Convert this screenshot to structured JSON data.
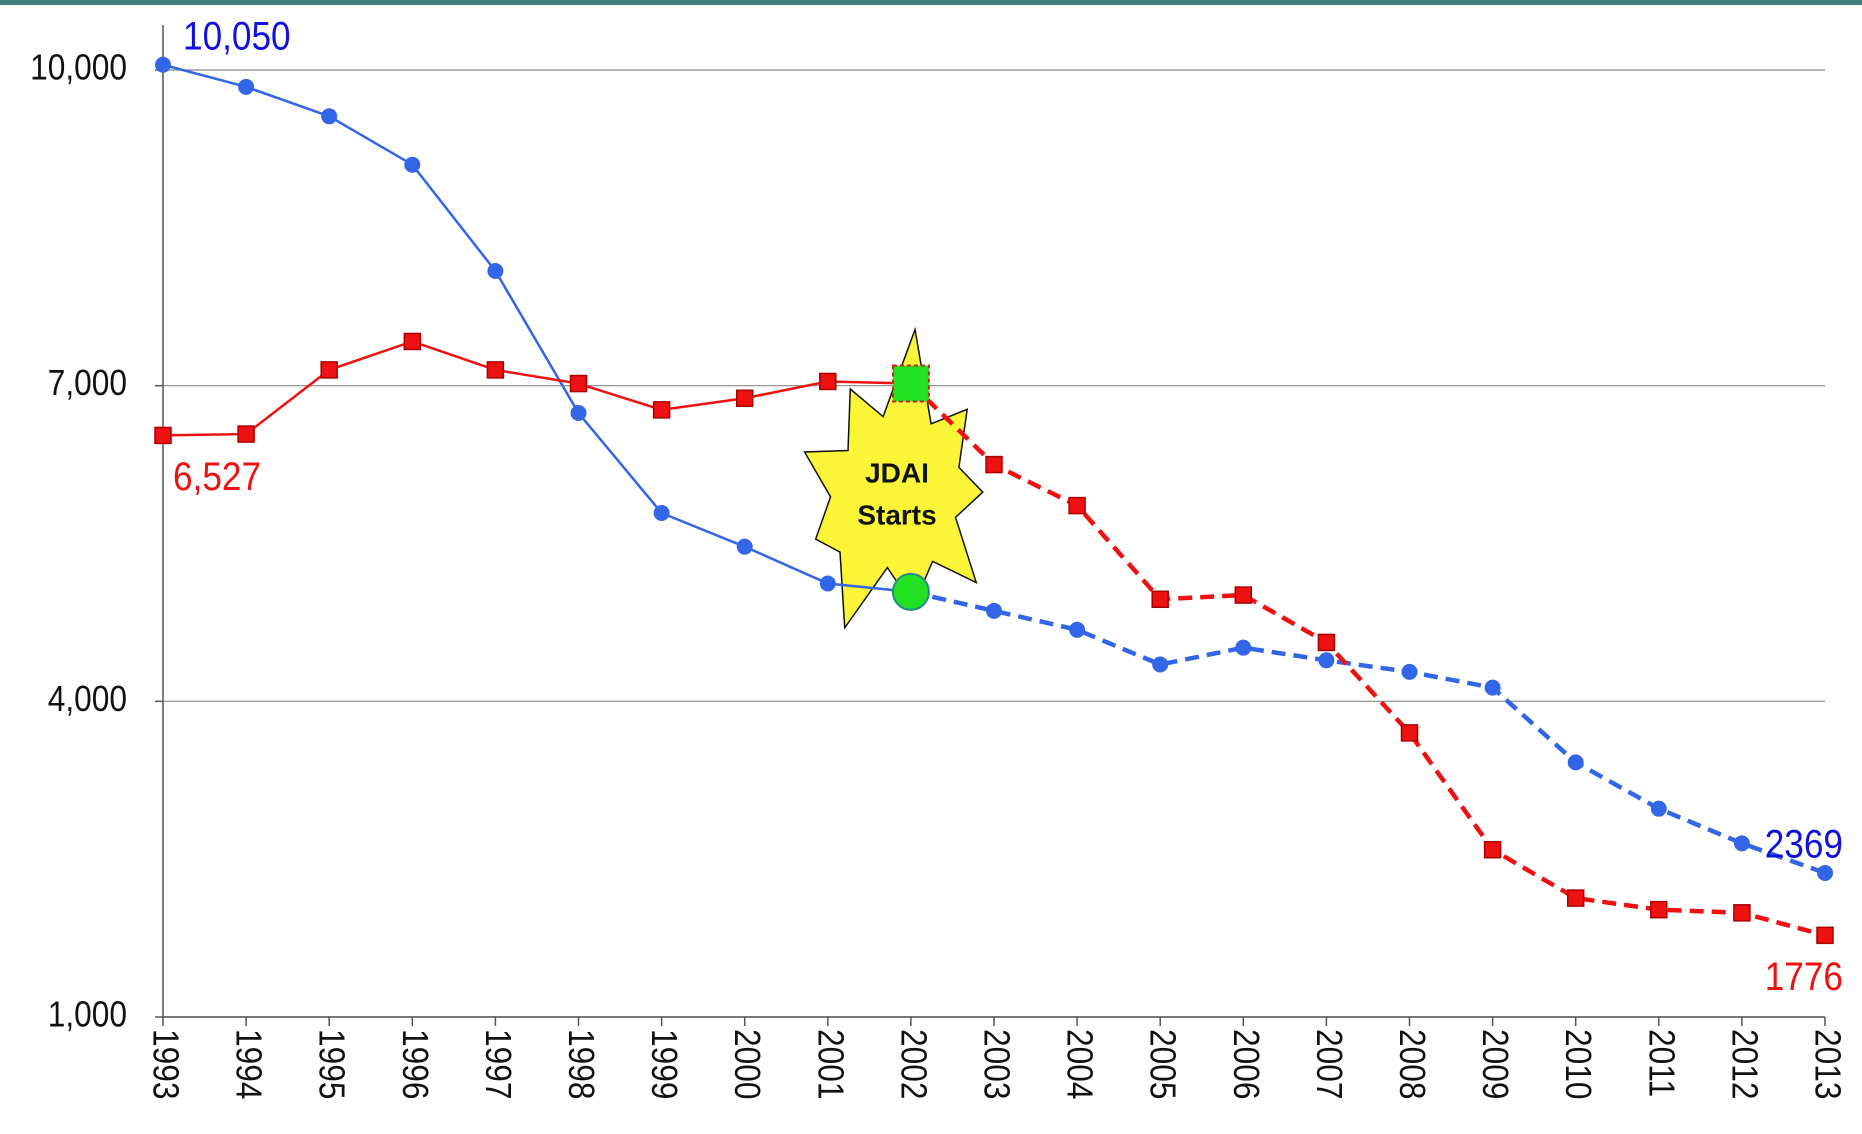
{
  "chart_data": {
    "type": "line",
    "categories": [
      "1993",
      "1994",
      "1995",
      "1996",
      "1997",
      "1998",
      "1999",
      "2000",
      "2001",
      "2002",
      "2003",
      "2004",
      "2005",
      "2006",
      "2007",
      "2008",
      "2009",
      "2010",
      "2011",
      "2012",
      "2013"
    ],
    "series": [
      {
        "color": "#3366e6",
        "label_color": "#1010e0",
        "marker": "circle",
        "values": [
          10050,
          9840,
          9560,
          9100,
          8090,
          6740,
          5790,
          5470,
          5120,
          5040,
          4860,
          4680,
          4350,
          4510,
          4390,
          4280,
          4130,
          3420,
          2980,
          2650,
          2369
        ],
        "value_labels": [
          "10,050",
          null,
          null,
          null,
          null,
          null,
          null,
          null,
          null,
          null,
          null,
          null,
          null,
          null,
          null,
          null,
          null,
          null,
          null,
          null,
          "2369"
        ]
      },
      {
        "color": "#ee1111",
        "label_color": "#ee1111",
        "marker": "x",
        "values": [
          6527,
          6540,
          7150,
          7420,
          7150,
          7020,
          6770,
          6880,
          7040,
          7020,
          6250,
          5860,
          4970,
          5010,
          4560,
          3700,
          2590,
          2130,
          2020,
          1990,
          1776
        ],
        "value_labels": [
          "6,527",
          null,
          null,
          null,
          null,
          null,
          null,
          null,
          null,
          null,
          null,
          null,
          null,
          null,
          null,
          null,
          null,
          null,
          null,
          null,
          "1776"
        ]
      }
    ],
    "ylim": [
      1000,
      10000
    ],
    "yticks": [
      {
        "value": 1000,
        "label": "1,000"
      },
      {
        "value": 4000,
        "label": "4,000"
      },
      {
        "value": 7000,
        "label": "7,000"
      },
      {
        "value": 10000,
        "label": "10,000"
      }
    ],
    "grid": true,
    "annotation": {
      "lines": [
        "JDAI",
        "Starts"
      ],
      "x": "2002"
    }
  }
}
